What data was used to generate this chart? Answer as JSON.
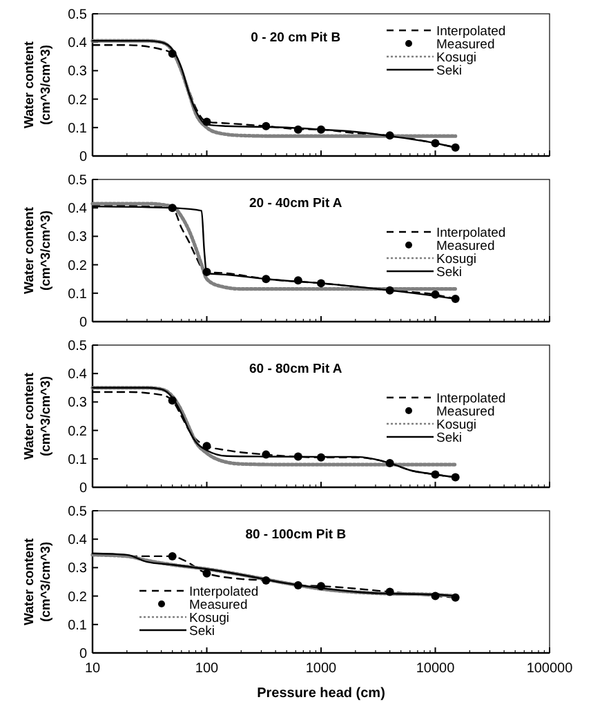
{
  "chart_data": [
    {
      "type": "line",
      "title": "0 - 20 cm Pit B",
      "ylabel": "Water content\n(cm^3/cm^3)",
      "xlim": [
        10,
        100000
      ],
      "xticks": [
        10,
        100,
        1000,
        10000,
        100000
      ],
      "ylim": [
        0,
        0.5
      ],
      "yticks": [
        0,
        0.1,
        0.2,
        0.3,
        0.4,
        0.5
      ],
      "log": "x",
      "tick_labels": "y",
      "legend": "top right",
      "series": [
        {
          "name": "Interpolated",
          "color": "#000000",
          "line_style": "dashed",
          "x": [
            10,
            20,
            40,
            50,
            60,
            70,
            80,
            100,
            150,
            330,
            600,
            1000,
            2000,
            4000,
            10000,
            15000
          ],
          "values": [
            0.39,
            0.39,
            0.375,
            0.36,
            0.3,
            0.23,
            0.17,
            0.12,
            0.115,
            0.105,
            0.095,
            0.093,
            0.08,
            0.072,
            0.045,
            0.03
          ]
        },
        {
          "name": "Measured",
          "type": "scatter",
          "marker": "circle",
          "color": "#000000",
          "x": [
            50,
            100,
            330,
            630,
            1000,
            4000,
            10000,
            15000
          ],
          "values": [
            0.36,
            0.12,
            0.105,
            0.093,
            0.093,
            0.072,
            0.045,
            0.03
          ]
        },
        {
          "name": "Kosugi",
          "color": "#808080",
          "line_style": "dotted",
          "x": [
            10,
            30,
            40,
            50,
            60,
            70,
            80,
            100,
            130,
            200,
            400,
            1000,
            15000
          ],
          "values": [
            0.405,
            0.405,
            0.4,
            0.37,
            0.3,
            0.22,
            0.15,
            0.1,
            0.08,
            0.072,
            0.07,
            0.07,
            0.07
          ]
        },
        {
          "name": "Seki",
          "color": "#000000",
          "line_style": "solid",
          "x": [
            10,
            30,
            40,
            50,
            60,
            70,
            80,
            100,
            150,
            500,
            1000,
            2000,
            4000,
            10000,
            15000
          ],
          "values": [
            0.405,
            0.405,
            0.4,
            0.375,
            0.31,
            0.22,
            0.16,
            0.11,
            0.105,
            0.1,
            0.093,
            0.085,
            0.07,
            0.045,
            0.03
          ]
        }
      ]
    },
    {
      "type": "line",
      "title": "20 - 40cm Pit A",
      "ylabel": "Water content\n(cm^3/cm^3)",
      "xlim": [
        10,
        100000
      ],
      "xticks": [
        10,
        100,
        1000,
        10000,
        100000
      ],
      "ylim": [
        0,
        0.5
      ],
      "yticks": [
        0,
        0.1,
        0.2,
        0.3,
        0.4,
        0.5
      ],
      "log": "x",
      "tick_labels": "y",
      "legend": "right",
      "series": [
        {
          "name": "Interpolated",
          "color": "#000000",
          "line_style": "dashed",
          "x": [
            10,
            30,
            50,
            60,
            70,
            80,
            90,
            100,
            150,
            330,
            1000,
            4000,
            10000,
            15000
          ],
          "values": [
            0.41,
            0.405,
            0.4,
            0.33,
            0.28,
            0.23,
            0.19,
            0.175,
            0.17,
            0.15,
            0.135,
            0.11,
            0.095,
            0.08
          ]
        },
        {
          "name": "Measured",
          "type": "scatter",
          "marker": "circle",
          "color": "#000000",
          "x": [
            50,
            100,
            330,
            630,
            1000,
            4000,
            10000,
            15000
          ],
          "values": [
            0.4,
            0.175,
            0.15,
            0.145,
            0.135,
            0.11,
            0.095,
            0.08
          ]
        },
        {
          "name": "Kosugi",
          "color": "#808080",
          "line_style": "dotted",
          "x": [
            10,
            30,
            50,
            60,
            70,
            80,
            90,
            100,
            130,
            200,
            400,
            1000,
            15000
          ],
          "values": [
            0.415,
            0.415,
            0.405,
            0.37,
            0.32,
            0.26,
            0.2,
            0.15,
            0.125,
            0.115,
            0.115,
            0.115,
            0.115
          ]
        },
        {
          "name": "Seki",
          "color": "#000000",
          "line_style": "solid",
          "x": [
            10,
            50,
            90,
            95,
            100,
            150,
            330,
            1000,
            4000,
            10000,
            15000
          ],
          "values": [
            0.405,
            0.4,
            0.39,
            0.25,
            0.17,
            0.165,
            0.15,
            0.135,
            0.11,
            0.09,
            0.08
          ]
        }
      ]
    },
    {
      "type": "line",
      "title": "60 - 80cm Pit A",
      "ylabel": "Water content\n(cm^3/cm^3)",
      "xlim": [
        10,
        100000
      ],
      "xticks": [
        10,
        100,
        1000,
        10000,
        100000
      ],
      "ylim": [
        0,
        0.5
      ],
      "yticks": [
        0,
        0.1,
        0.2,
        0.3,
        0.4,
        0.5
      ],
      "log": "x",
      "tick_labels": "y",
      "legend": "right",
      "series": [
        {
          "name": "Interpolated",
          "color": "#000000",
          "line_style": "dashed",
          "x": [
            10,
            20,
            40,
            50,
            60,
            70,
            80,
            100,
            150,
            330,
            1000,
            2000,
            4000,
            6000,
            10000,
            15000
          ],
          "values": [
            0.335,
            0.335,
            0.325,
            0.305,
            0.25,
            0.2,
            0.17,
            0.145,
            0.13,
            0.115,
            0.105,
            0.105,
            0.085,
            0.06,
            0.045,
            0.035
          ]
        },
        {
          "name": "Measured",
          "type": "scatter",
          "marker": "circle",
          "color": "#000000",
          "x": [
            50,
            100,
            330,
            630,
            1000,
            4000,
            10000,
            15000
          ],
          "values": [
            0.305,
            0.145,
            0.115,
            0.108,
            0.105,
            0.085,
            0.045,
            0.035
          ]
        },
        {
          "name": "Kosugi",
          "color": "#808080",
          "line_style": "dotted",
          "x": [
            10,
            30,
            40,
            50,
            60,
            70,
            80,
            100,
            130,
            200,
            400,
            1000,
            15000
          ],
          "values": [
            0.35,
            0.35,
            0.345,
            0.32,
            0.27,
            0.21,
            0.16,
            0.12,
            0.095,
            0.082,
            0.08,
            0.08,
            0.08
          ]
        },
        {
          "name": "Seki",
          "color": "#000000",
          "line_style": "solid",
          "x": [
            10,
            30,
            40,
            50,
            60,
            70,
            80,
            100,
            150,
            330,
            1000,
            2000,
            4000,
            6000,
            10000,
            15000
          ],
          "values": [
            0.35,
            0.35,
            0.345,
            0.315,
            0.26,
            0.2,
            0.16,
            0.13,
            0.11,
            0.108,
            0.107,
            0.107,
            0.085,
            0.06,
            0.045,
            0.035
          ]
        }
      ]
    },
    {
      "type": "line",
      "title": "80 - 100cm Pit B",
      "ylabel": "Water content\n(cm^3/cm^3)",
      "xlabel": "Pressure head (cm)",
      "xlim": [
        10,
        100000
      ],
      "xticks": [
        10,
        100,
        1000,
        10000,
        100000
      ],
      "ylim": [
        0,
        0.5
      ],
      "yticks": [
        0,
        0.1,
        0.2,
        0.3,
        0.4,
        0.5
      ],
      "log": "x",
      "legend": "bottom left",
      "series": [
        {
          "name": "Interpolated",
          "color": "#000000",
          "line_style": "dashed",
          "x": [
            10,
            20,
            50,
            60,
            100,
            200,
            330,
            630,
            1000,
            4000,
            10000,
            15000
          ],
          "values": [
            0.345,
            0.34,
            0.34,
            0.33,
            0.28,
            0.26,
            0.255,
            0.238,
            0.235,
            0.215,
            0.2,
            0.195
          ]
        },
        {
          "name": "Measured",
          "type": "scatter",
          "marker": "circle",
          "color": "#000000",
          "x": [
            50,
            100,
            330,
            630,
            1000,
            4000,
            10000,
            15000
          ],
          "values": [
            0.34,
            0.28,
            0.255,
            0.238,
            0.235,
            0.215,
            0.2,
            0.195
          ]
        },
        {
          "name": "Kosugi",
          "color": "#808080",
          "line_style": "dotted",
          "x": [
            10,
            20,
            30,
            50,
            100,
            200,
            500,
            1000,
            3000,
            10000,
            15000
          ],
          "values": [
            0.345,
            0.34,
            0.325,
            0.31,
            0.295,
            0.275,
            0.245,
            0.225,
            0.21,
            0.205,
            0.2
          ]
        },
        {
          "name": "Seki",
          "color": "#000000",
          "line_style": "solid",
          "x": [
            10,
            20,
            30,
            50,
            100,
            200,
            500,
            1000,
            3000,
            10000,
            15000
          ],
          "values": [
            0.35,
            0.345,
            0.32,
            0.31,
            0.295,
            0.275,
            0.245,
            0.228,
            0.21,
            0.205,
            0.2
          ]
        }
      ]
    }
  ]
}
